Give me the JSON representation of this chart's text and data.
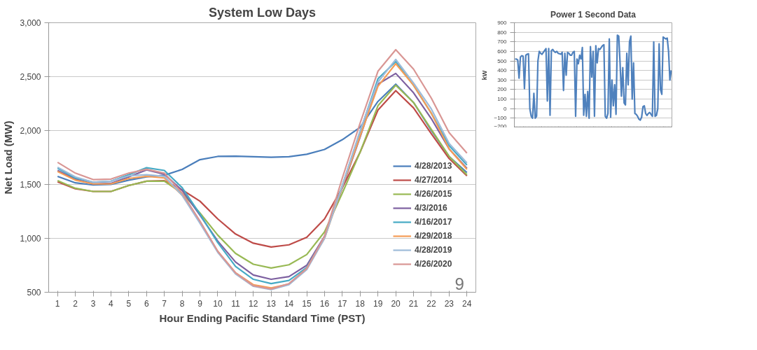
{
  "chart_data": [
    {
      "type": "line",
      "title": "System Low Days",
      "xlabel": "Hour Ending Pacific Standard Time (PST)",
      "ylabel": "Net Load (MW)",
      "x": [
        1,
        2,
        3,
        4,
        5,
        6,
        7,
        8,
        9,
        10,
        11,
        12,
        13,
        14,
        15,
        16,
        17,
        18,
        19,
        20,
        21,
        22,
        23,
        24
      ],
      "xlim": [
        0.5,
        24.5
      ],
      "xticks": [
        1,
        2,
        3,
        4,
        5,
        6,
        7,
        8,
        9,
        10,
        11,
        12,
        13,
        14,
        15,
        16,
        17,
        18,
        19,
        20,
        21,
        22,
        23,
        24
      ],
      "ylim": [
        500,
        3000
      ],
      "yticks": [
        {
          "value": 500,
          "label": "500"
        },
        {
          "value": 1000,
          "label": "1,000"
        },
        {
          "value": 1500,
          "label": "1,500"
        },
        {
          "value": 2000,
          "label": "2,000"
        },
        {
          "value": 2500,
          "label": "2,500"
        },
        {
          "value": 3000,
          "label": "3,000"
        }
      ],
      "grid": "y",
      "legend": "right",
      "line_style": "solid",
      "annotations": [
        "9"
      ],
      "series": [
        {
          "name": "4/28/2013",
          "color": "#4a7ebb",
          "values": [
            1575,
            1515,
            1495,
            1500,
            1540,
            1570,
            1585,
            1640,
            1730,
            1760,
            1762,
            1757,
            1752,
            1757,
            1780,
            1825,
            1915,
            2030,
            2270,
            2430,
            2260,
            2000,
            1760,
            1610
          ]
        },
        {
          "name": "4/27/2014",
          "color": "#be4b48",
          "values": [
            1525,
            1460,
            1435,
            1435,
            1490,
            1530,
            1535,
            1450,
            1345,
            1180,
            1040,
            955,
            920,
            940,
            1010,
            1180,
            1470,
            1800,
            2190,
            2370,
            2210,
            1970,
            1740,
            1580
          ]
        },
        {
          "name": "4/26/2015",
          "color": "#98b954",
          "values": [
            1535,
            1465,
            1435,
            1435,
            1490,
            1530,
            1530,
            1420,
            1235,
            1030,
            860,
            760,
            725,
            755,
            850,
            1060,
            1420,
            1800,
            2230,
            2420,
            2260,
            2010,
            1760,
            1590
          ]
        },
        {
          "name": "4/3/2016",
          "color": "#7d60a0",
          "values": [
            1630,
            1550,
            1505,
            1510,
            1570,
            1635,
            1595,
            1445,
            1215,
            975,
            780,
            660,
            620,
            645,
            750,
            1020,
            1470,
            1940,
            2430,
            2530,
            2350,
            2110,
            1830,
            1650
          ]
        },
        {
          "name": "4/16/2017",
          "color": "#46aac5",
          "values": [
            1650,
            1560,
            1520,
            1530,
            1590,
            1655,
            1630,
            1470,
            1225,
            960,
            740,
            620,
            580,
            610,
            730,
            1010,
            1490,
            1990,
            2480,
            2640,
            2420,
            2160,
            1860,
            1680
          ]
        },
        {
          "name": "4/29/2018",
          "color": "#f59d56",
          "values": [
            1620,
            1540,
            1505,
            1505,
            1555,
            1575,
            1560,
            1400,
            1155,
            880,
            680,
            570,
            540,
            575,
            720,
            1000,
            1480,
            1950,
            2410,
            2620,
            2420,
            2160,
            1830,
            1640
          ]
        },
        {
          "name": "4/28/2019",
          "color": "#9ebbd9",
          "values": [
            1660,
            1570,
            1520,
            1530,
            1580,
            1590,
            1575,
            1400,
            1140,
            870,
            670,
            555,
            525,
            570,
            710,
            1000,
            1490,
            2000,
            2450,
            2660,
            2440,
            2200,
            1880,
            1700
          ]
        },
        {
          "name": "4/26/2020",
          "color": "#d99694",
          "values": [
            1705,
            1605,
            1545,
            1550,
            1605,
            1640,
            1605,
            1420,
            1160,
            880,
            680,
            560,
            530,
            580,
            720,
            1020,
            1560,
            2070,
            2550,
            2750,
            2570,
            2300,
            1980,
            1790
          ]
        }
      ]
    },
    {
      "type": "line",
      "title": "Power 1 Second Data",
      "ylabel": "kW",
      "tick_labels": "y",
      "grid": "y",
      "categories": [
        null,
        null,
        null,
        null,
        null,
        null,
        null,
        null,
        null,
        null,
        null,
        null,
        null,
        null,
        null,
        null,
        null,
        null,
        null,
        null,
        null,
        null,
        null,
        null,
        null,
        null,
        null,
        null,
        null,
        null,
        null,
        null,
        null,
        null,
        null,
        null,
        null,
        null,
        null,
        null,
        null,
        null,
        null,
        null,
        null,
        null,
        null,
        null,
        null,
        null,
        null,
        null,
        null,
        null,
        null,
        null,
        null,
        null,
        null,
        null,
        null,
        null,
        null,
        null,
        null,
        null,
        null,
        null,
        null,
        null,
        null,
        null,
        null,
        null,
        null,
        null,
        null,
        null,
        null,
        null,
        null,
        null,
        null,
        null,
        null,
        null,
        null,
        null,
        null,
        null,
        null,
        null,
        null,
        null,
        null,
        null,
        null,
        null,
        null,
        null,
        null,
        null,
        null,
        null,
        null,
        null,
        null,
        null,
        null,
        null,
        null,
        null,
        null,
        null,
        null,
        null,
        null
      ],
      "ylim": [
        -200,
        900
      ],
      "yticks": [
        -200,
        -100,
        0,
        100,
        200,
        300,
        400,
        500,
        600,
        700,
        800,
        900
      ],
      "series": [
        {
          "color": "#4f81bd",
          "values": [
            520,
            520,
            510,
            320,
            540,
            555,
            550,
            210,
            560,
            570,
            575,
            0,
            -80,
            -100,
            160,
            -100,
            -80,
            500,
            600,
            580,
            570,
            590,
            610,
            630,
            80,
            630,
            -70,
            610,
            620,
            600,
            590,
            600,
            580,
            575,
            570,
            590,
            190,
            580,
            350,
            590,
            580,
            560,
            560,
            590,
            600,
            -80,
            520,
            470,
            560,
            520,
            640,
            -70,
            150,
            -80,
            180,
            -100,
            650,
            330,
            600,
            -80,
            660,
            480,
            630,
            620,
            640,
            660,
            670,
            -80,
            -100,
            -50,
            730,
            -90,
            300,
            30,
            250,
            -60,
            770,
            760,
            480,
            130,
            430,
            60,
            40,
            580,
            250,
            700,
            760,
            100,
            480,
            -50,
            -60,
            -80,
            -110,
            -120,
            -90,
            20,
            30,
            -50,
            -70,
            -50,
            -40,
            -60,
            -80,
            700,
            -80,
            -70,
            0,
            680,
            200,
            150,
            750,
            740,
            730,
            740,
            600,
            300,
            400
          ]
        }
      ]
    }
  ]
}
